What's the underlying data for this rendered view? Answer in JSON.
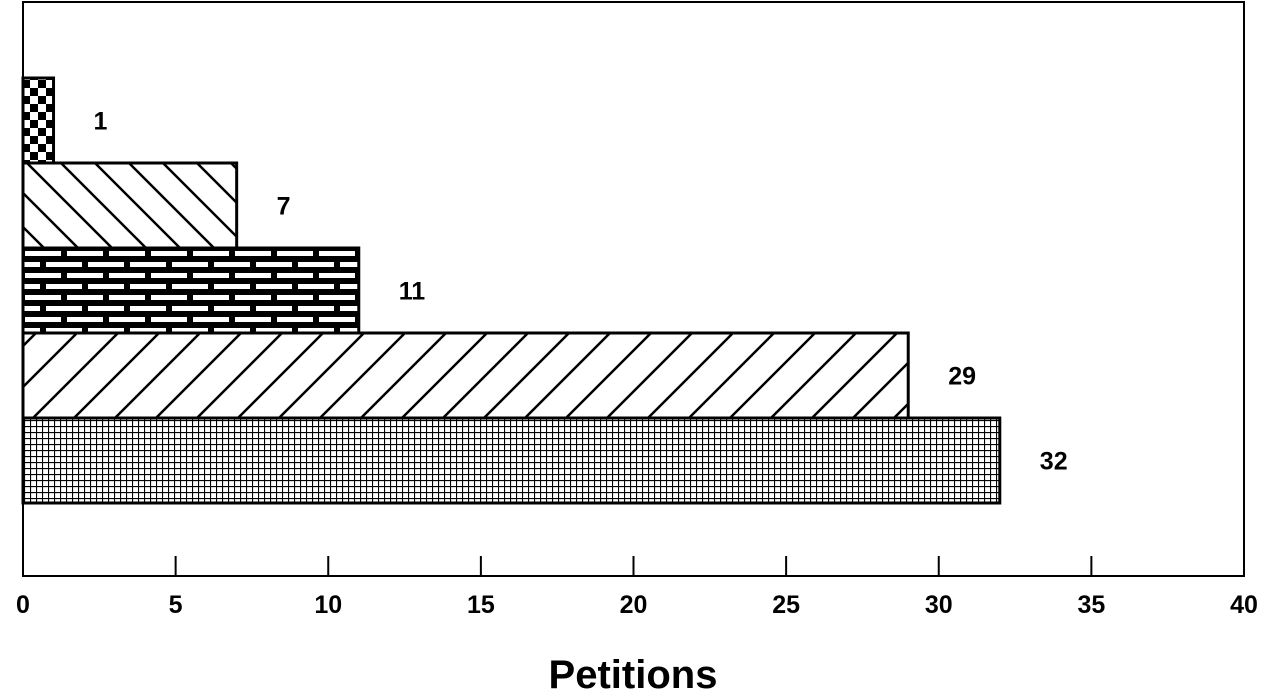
{
  "chart_data": {
    "type": "bar",
    "orientation": "horizontal",
    "title": "",
    "xlabel": "Petitions",
    "ylabel": "",
    "xlim": [
      0,
      40
    ],
    "xticks": [
      0,
      5,
      10,
      15,
      20,
      25,
      30,
      35,
      40
    ],
    "grid": false,
    "legend": "none",
    "bars": [
      {
        "value": 1,
        "label": "1",
        "pattern": "checker"
      },
      {
        "value": 7,
        "label": "7",
        "pattern": "diagonal-back"
      },
      {
        "value": 11,
        "label": "11",
        "pattern": "brick"
      },
      {
        "value": 29,
        "label": "29",
        "pattern": "diagonal-forward"
      },
      {
        "value": 32,
        "label": "32",
        "pattern": "fine-grid"
      }
    ]
  }
}
